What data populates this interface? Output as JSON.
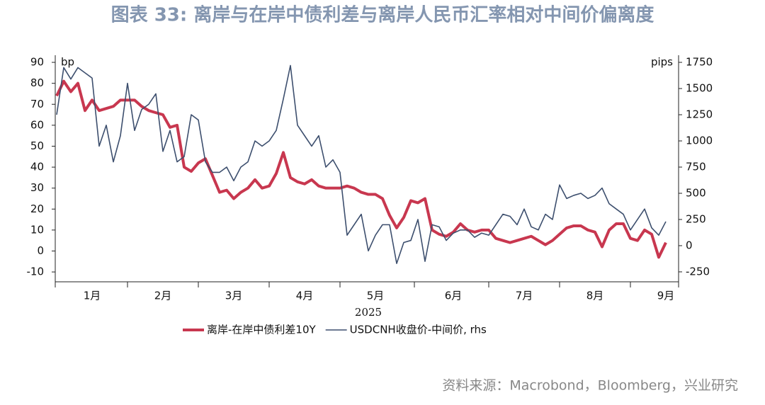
{
  "title": "图表 33: 离岸与在岸中债利差与离岸人民币汇率相对中间价偏离度",
  "source": "资料来源：Macrobond，Bloomberg，兴业研究",
  "chart_data": {
    "type": "line",
    "xlabel": "2025",
    "ylabel": "bp",
    "y2label": "pips",
    "categories": [
      null,
      null,
      null,
      null,
      null,
      "1月",
      null,
      null,
      null,
      null,
      null,
      null,
      null,
      null,
      null,
      "2月",
      null,
      null,
      null,
      null,
      null,
      null,
      null,
      null,
      null,
      "3月",
      null,
      null,
      null,
      null,
      null,
      null,
      null,
      null,
      null,
      "4月",
      null,
      null,
      null,
      null,
      null,
      null,
      null,
      null,
      null,
      "5月",
      null,
      null,
      null,
      null,
      null,
      null,
      null,
      null,
      null,
      null,
      "6月",
      null,
      null,
      null,
      null,
      null,
      null,
      null,
      null,
      null,
      "7月",
      null,
      null,
      null,
      null,
      null,
      null,
      null,
      null,
      null,
      "8月",
      null,
      null,
      null,
      null,
      null,
      null,
      null,
      null,
      null,
      "9月"
    ],
    "series": [
      {
        "name": "离岸-在岸中债利差10Y",
        "color": "#c8374f",
        "values": [
          74,
          81,
          76,
          80,
          67,
          72,
          67,
          68,
          69,
          72,
          72,
          72,
          69,
          67,
          66,
          65,
          59,
          60,
          40,
          38,
          42,
          44,
          36,
          28,
          29,
          25,
          28,
          30,
          34,
          30,
          31,
          37,
          47,
          35,
          33,
          32,
          34,
          31,
          30,
          30,
          30,
          31,
          30,
          28,
          27,
          27,
          25,
          17,
          11,
          16,
          24,
          23,
          25,
          10,
          8,
          7,
          9,
          13,
          10,
          9,
          10,
          10,
          6,
          5,
          4,
          5,
          6,
          7,
          5,
          3,
          5,
          8,
          11,
          12,
          12,
          10,
          9,
          2,
          10,
          13,
          13,
          6,
          5,
          10,
          8,
          -3,
          4
        ]
      },
      {
        "name": "USDCNH收盘价-中间价, rhs",
        "color": "#3d4f6e",
        "axis": "y2",
        "values": [
          1250,
          1700,
          1590,
          1700,
          1650,
          1600,
          950,
          1150,
          800,
          1050,
          1550,
          1100,
          1300,
          1350,
          1450,
          900,
          1100,
          800,
          850,
          1250,
          1200,
          800,
          700,
          700,
          750,
          620,
          750,
          800,
          1000,
          950,
          1000,
          1100,
          1400,
          1720,
          1150,
          1050,
          950,
          1050,
          750,
          820,
          700,
          100,
          200,
          300,
          -50,
          100,
          200,
          200,
          -170,
          30,
          50,
          250,
          -150,
          200,
          180,
          50,
          120,
          150,
          150,
          80,
          120,
          100,
          200,
          300,
          280,
          200,
          350,
          180,
          150,
          300,
          250,
          580,
          450,
          480,
          500,
          450,
          480,
          550,
          400,
          350,
          300,
          150,
          250,
          350,
          170,
          100,
          230
        ]
      }
    ],
    "ylim": [
      -14.7,
      93.4
    ],
    "yticks": [
      -10,
      0,
      10,
      20,
      30,
      40,
      50,
      60,
      70,
      80,
      90
    ],
    "y2lim": [
      -345,
      1818
    ],
    "y2ticks": [
      -250,
      0,
      250,
      500,
      750,
      1000,
      1250,
      1500,
      1750
    ]
  }
}
